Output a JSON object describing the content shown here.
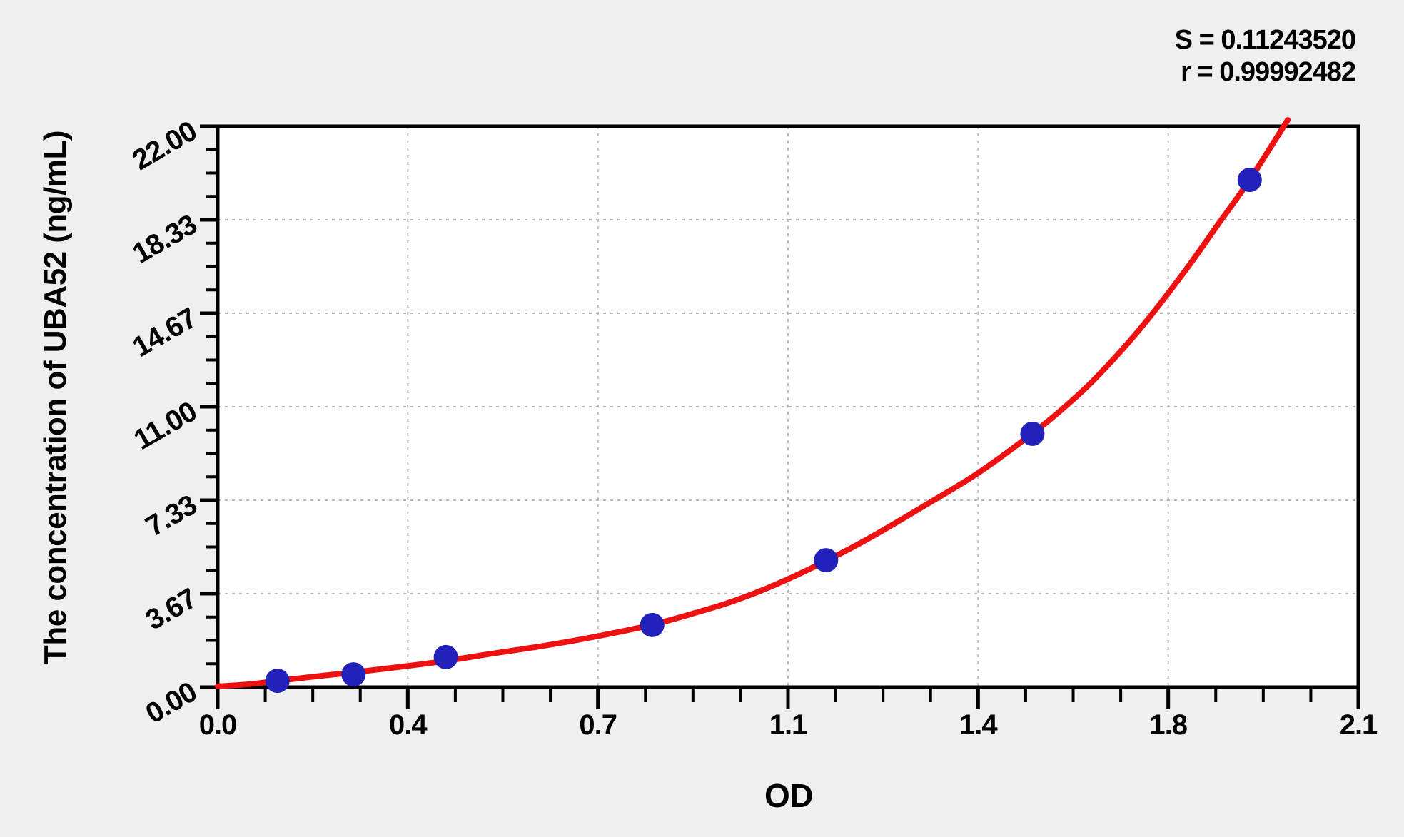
{
  "stats": {
    "s_line": "S = 0.11243520",
    "r_line": "r = 0.99992482"
  },
  "chart_data": {
    "type": "scatter",
    "title": "",
    "xlabel": "OD",
    "ylabel": "The concentration of UBA52 (ng/mL)",
    "xlim": [
      0,
      2.1
    ],
    "ylim": [
      0,
      22
    ],
    "grid": "dashed gray lines at major ticks, plot area white on gray page",
    "legend": "none",
    "x_major_tick_values": [
      0,
      0.35,
      0.7,
      1.05,
      1.4,
      1.75,
      2.1
    ],
    "x_tick_labels": [
      "0.0",
      "0.4",
      "0.7",
      "1.1",
      "1.4",
      "1.8",
      "2.1"
    ],
    "y_major_tick_values": [
      0,
      3.6667,
      7.3333,
      11,
      14.6667,
      18.3333,
      22
    ],
    "y_tick_labels": [
      "0.00",
      "3.67",
      "7.33",
      "11.00",
      "14.67",
      "18.33",
      "22.00"
    ],
    "minor_ticks_per_division": 3,
    "fit_stats": {
      "S": "0.11243520",
      "r": "0.99992482"
    },
    "series": [
      {
        "name": "standard data points",
        "type": "scatter",
        "marker": "circle",
        "points_od": [
          0.11,
          0.25,
          0.42,
          0.8,
          1.12,
          1.5,
          1.9
        ],
        "points_conc": [
          0.25,
          0.5,
          1.18,
          2.44,
          4.98,
          9.94,
          19.9
        ]
      },
      {
        "name": "fitted standard curve",
        "type": "line",
        "samples": [
          [
            0.0,
            0.03
          ],
          [
            0.06,
            0.12
          ],
          [
            0.11,
            0.25
          ],
          [
            0.18,
            0.42
          ],
          [
            0.25,
            0.58
          ],
          [
            0.33,
            0.78
          ],
          [
            0.42,
            1.03
          ],
          [
            0.5,
            1.3
          ],
          [
            0.6,
            1.62
          ],
          [
            0.7,
            2.0
          ],
          [
            0.8,
            2.45
          ],
          [
            0.88,
            2.92
          ],
          [
            0.95,
            3.38
          ],
          [
            1.03,
            4.05
          ],
          [
            1.12,
            4.95
          ],
          [
            1.2,
            5.85
          ],
          [
            1.3,
            7.1
          ],
          [
            1.4,
            8.4
          ],
          [
            1.5,
            9.95
          ],
          [
            1.56,
            11.0
          ],
          [
            1.62,
            12.2
          ],
          [
            1.7,
            14.1
          ],
          [
            1.78,
            16.3
          ],
          [
            1.84,
            18.1
          ],
          [
            1.9,
            19.9
          ],
          [
            1.97,
            22.25
          ]
        ]
      }
    ]
  },
  "colors": {
    "background": "#f0efef",
    "plot_background": "#ffffff",
    "axis": "#000000",
    "grid": "#b8b8b8",
    "curve": "#ee1111",
    "point": "#2222bb",
    "text": "#000000"
  }
}
